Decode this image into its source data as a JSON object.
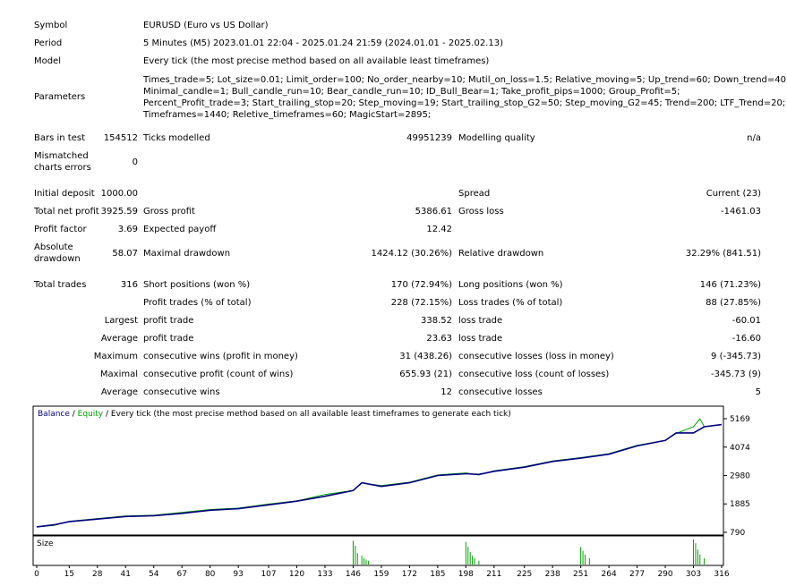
{
  "report": {
    "symbol_label": "Symbol",
    "symbol_value": "EURUSD (Euro vs US Dollar)",
    "period_label": "Period",
    "period_value": "5 Minutes (M5) 2023.01.01 22:04 - 2025.01.24 21:59 (2024.01.01 - 2025.02.13)",
    "model_label": "Model",
    "model_value": "Every tick (the most precise method based on all available least timeframes)",
    "parameters_label": "Parameters",
    "parameters_lines": [
      "Times_trade=5; Lot_size=0.01; Limit_order=100; No_order_nearby=10; Mutil_on_loss=1.5; Relative_moving=5; Up_trend=60; Down_trend=40;",
      "Minimal_candle=1; Bull_candle_run=10; Bear_candle_run=10; ID_Bull_Bear=1; Take_profit_pips=1000; Group_Profit=5;",
      "Percent_Profit_trade=3; Start_trailing_stop=20; Step_moving=19; Start_trailing_stop_G2=50; Step_moving_G2=45; Trend=200; LTF_Trend=20;",
      "Timeframes=1440; Reletive_timeframes=60; MagicStart=2895;"
    ],
    "bars_label": "Bars in test",
    "bars_value": "154512",
    "ticks_label": "Ticks modelled",
    "ticks_value": "49951239",
    "quality_label": "Modelling quality",
    "quality_value": "n/a",
    "mismatch_label_1": "Mismatched",
    "mismatch_label_2": "charts errors",
    "mismatch_value": "0",
    "deposit_label": "Initial deposit",
    "deposit_value": "1000.00",
    "spread_label": "Spread",
    "spread_value": "Current (23)",
    "netprofit_label": "Total net profit",
    "netprofit_value": "3925.59",
    "grossprofit_label": "Gross profit",
    "grossprofit_value": "5386.61",
    "grossloss_label": "Gross loss",
    "grossloss_value": "-1461.03",
    "pf_label": "Profit factor",
    "pf_value": "3.69",
    "payoff_label": "Expected payoff",
    "payoff_value": "12.42",
    "absdd_label_1": "Absolute",
    "absdd_label_2": "drawdown",
    "absdd_value": "58.07",
    "maxdd_label": "Maximal drawdown",
    "maxdd_value": "1424.12 (30.26%)",
    "reldd_label": "Relative drawdown",
    "reldd_value": "32.29% (841.51)",
    "trades_label": "Total trades",
    "trades_value": "316",
    "short_label": "Short positions (won %)",
    "short_value": "170 (72.94%)",
    "long_label": "Long positions (won %)",
    "long_value": "146 (71.23%)",
    "profittrades_label": "Profit trades (% of total)",
    "profittrades_value": "228 (72.15%)",
    "losstrades_label": "Loss trades (% of total)",
    "losstrades_value": "88 (27.85%)",
    "largest_label": "Largest",
    "largest_profit_label": "profit trade",
    "largest_profit_value": "338.52",
    "largest_loss_label": "loss trade",
    "largest_loss_value": "-60.01",
    "average_label": "Average",
    "average_profit_label": "profit trade",
    "average_profit_value": "23.63",
    "average_loss_label": "loss trade",
    "average_loss_value": "-16.60",
    "maximum_label": "Maximum",
    "max_wins_label": "consecutive wins (profit in money)",
    "max_wins_value": "31 (438.26)",
    "max_losses_label": "consecutive losses (loss in money)",
    "max_losses_value": "9 (-345.73)",
    "maximal_label": "Maximal",
    "maximal_profit_label": "consecutive profit (count of wins)",
    "maximal_profit_value": "655.93 (21)",
    "maximal_loss_label": "consecutive loss (count of losses)",
    "maximal_loss_value": "-345.73 (9)",
    "avg2_label": "Average",
    "avg_wins_label": "consecutive wins",
    "avg_wins_value": "12",
    "avg_losses_label": "consecutive losses",
    "avg_losses_value": "5"
  },
  "chart_data": {
    "type": "line",
    "legend": {
      "balance": "Balance",
      "sep1": " / ",
      "equity": "Equity",
      "sep2": " / ",
      "model": "Every tick (the most precise method based on all available least timeframes to generate each tick)"
    },
    "y_ticks": [
      "5169",
      "4074",
      "2980",
      "1885",
      "790"
    ],
    "y_tick_values": [
      5169,
      4074,
      2980,
      1885,
      790
    ],
    "x_ticks": [
      "0",
      "15",
      "28",
      "41",
      "54",
      "67",
      "80",
      "93",
      "107",
      "120",
      "133",
      "146",
      "159",
      "172",
      "185",
      "198",
      "211",
      "225",
      "238",
      "251",
      "264",
      "277",
      "290",
      "303",
      "316"
    ],
    "x_tick_values": [
      0,
      15,
      28,
      41,
      54,
      67,
      80,
      93,
      107,
      120,
      133,
      146,
      159,
      172,
      185,
      198,
      211,
      225,
      238,
      251,
      264,
      277,
      290,
      303,
      316
    ],
    "xlim": [
      0,
      316
    ],
    "ylim": [
      790,
      5169
    ],
    "size_label": "Size",
    "colors": {
      "balance": "#00007f",
      "equity": "#00a000",
      "size": "#00a000",
      "axis": "#000000"
    },
    "series": [
      {
        "name": "Balance",
        "x": [
          0,
          8,
          15,
          28,
          41,
          54,
          67,
          80,
          93,
          107,
          120,
          133,
          146,
          150,
          159,
          172,
          185,
          198,
          204,
          211,
          225,
          238,
          251,
          264,
          277,
          290,
          295,
          303,
          308,
          316
        ],
        "values": [
          1000,
          1080,
          1200,
          1300,
          1400,
          1430,
          1520,
          1640,
          1700,
          1850,
          1990,
          2180,
          2400,
          2700,
          2560,
          2700,
          2980,
          3050,
          3020,
          3140,
          3300,
          3520,
          3650,
          3800,
          4120,
          4330,
          4620,
          4620,
          4860,
          4940
        ]
      },
      {
        "name": "Equity",
        "x": [
          0,
          8,
          15,
          28,
          41,
          54,
          67,
          80,
          93,
          107,
          120,
          133,
          146,
          150,
          159,
          172,
          185,
          198,
          204,
          211,
          225,
          238,
          251,
          264,
          277,
          290,
          295,
          303,
          306,
          308,
          316
        ],
        "values": [
          1000,
          1060,
          1210,
          1320,
          1420,
          1450,
          1560,
          1670,
          1720,
          1880,
          2000,
          2250,
          2400,
          2690,
          2590,
          2720,
          3000,
          3080,
          3000,
          3160,
          3320,
          3540,
          3670,
          3820,
          4140,
          4330,
          4600,
          4860,
          5160,
          4860,
          4940
        ]
      }
    ],
    "size_bars": {
      "x": [
        146,
        147,
        148,
        150,
        151,
        152,
        153,
        198,
        199,
        200,
        201,
        202,
        204,
        251,
        252,
        253,
        255,
        303,
        304,
        305,
        306,
        308
      ],
      "values": [
        0.95,
        0.75,
        0.45,
        0.35,
        0.25,
        0.2,
        0.15,
        0.9,
        0.7,
        0.5,
        0.35,
        0.25,
        0.15,
        0.7,
        0.55,
        0.4,
        0.25,
        1.0,
        0.85,
        0.6,
        0.4,
        0.25
      ]
    }
  }
}
